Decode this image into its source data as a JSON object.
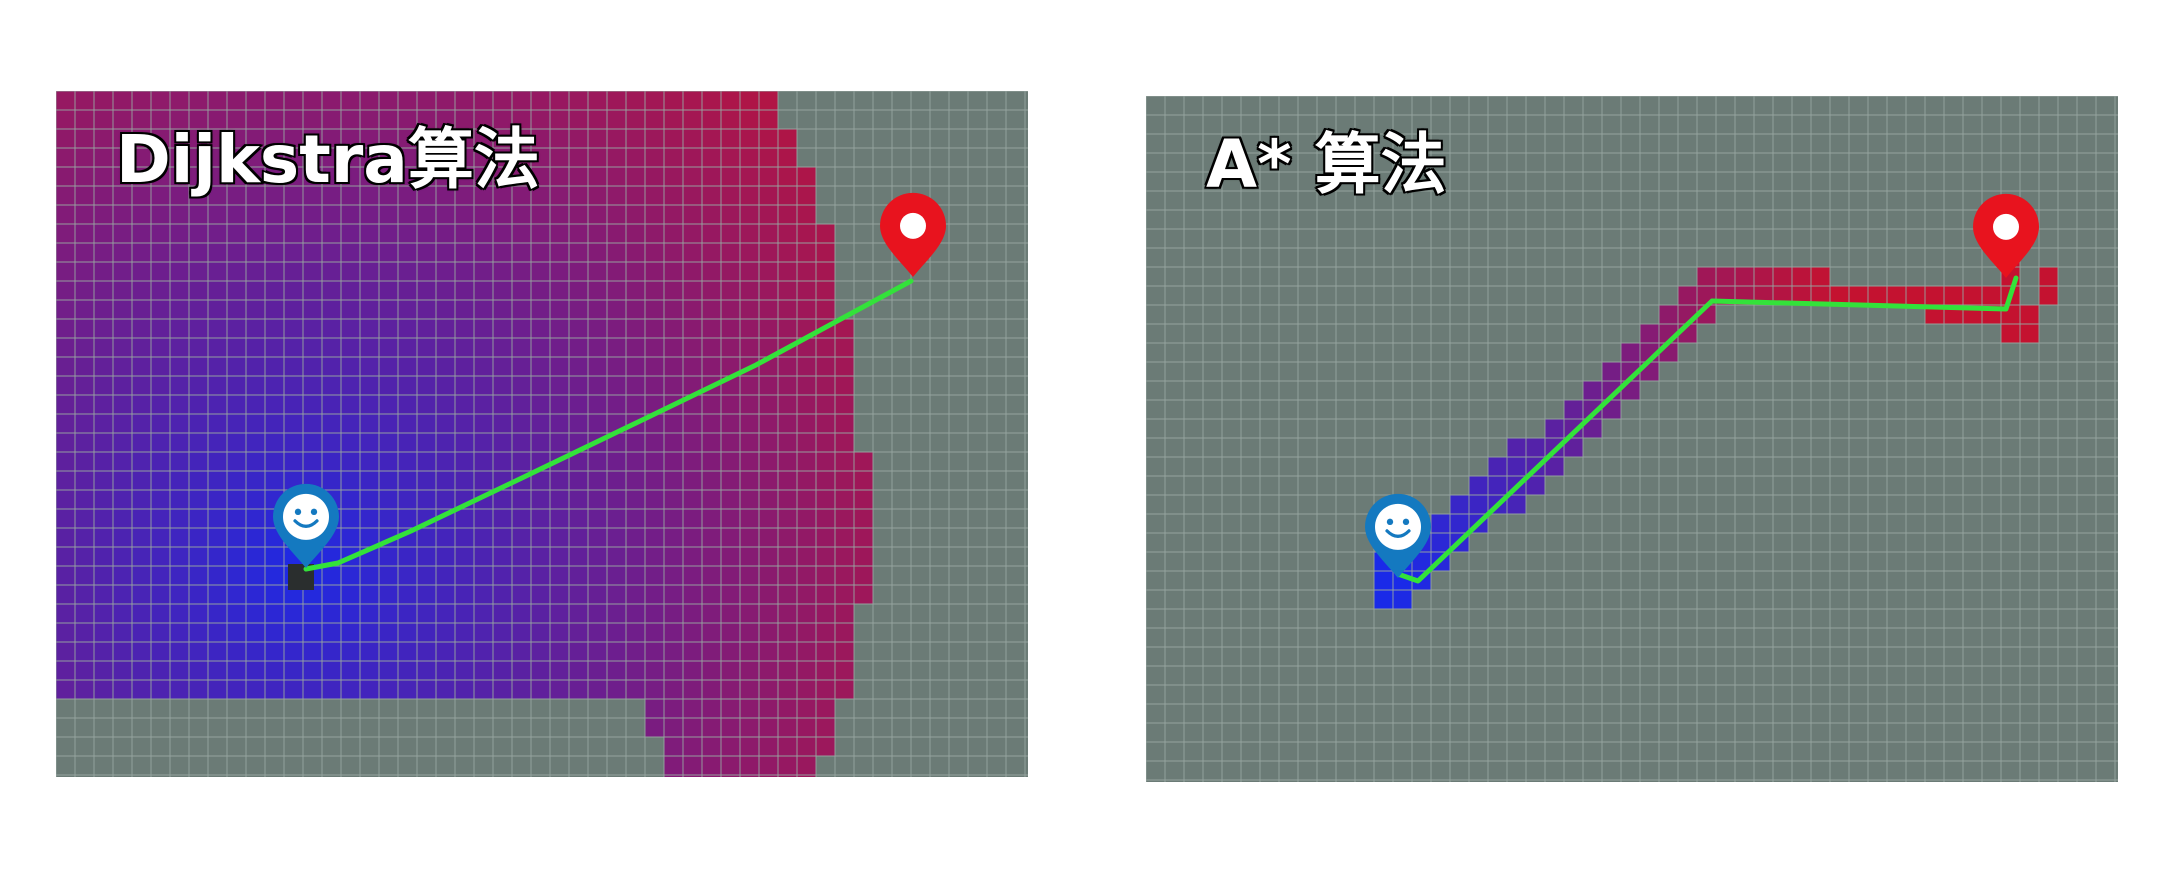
{
  "panels": [
    {
      "id": "dijkstra",
      "title": "Dijkstra算法",
      "colors": {
        "background": "#6b7b76",
        "grid_line": "#98a6a1",
        "path": "#33e23a",
        "start_color": "#1a2ae8",
        "far_color": "#c41230"
      },
      "start_marker": {
        "name": "start-marker",
        "icon": "smiley-pin-icon",
        "color": "#1479c0"
      },
      "goal_marker": {
        "name": "goal-marker",
        "icon": "location-pin-icon",
        "color": "#e8131e"
      }
    },
    {
      "id": "astar",
      "title": "A* 算法",
      "colors": {
        "background": "#6b7b76",
        "grid_line": "#98a6a1",
        "path": "#33e23a",
        "start_color": "#1a2ae8",
        "far_color": "#c41230"
      },
      "start_marker": {
        "name": "start-marker",
        "icon": "smiley-pin-icon",
        "color": "#1479c0"
      },
      "goal_marker": {
        "name": "goal-marker",
        "icon": "location-pin-icon",
        "color": "#e8131e"
      }
    }
  ]
}
